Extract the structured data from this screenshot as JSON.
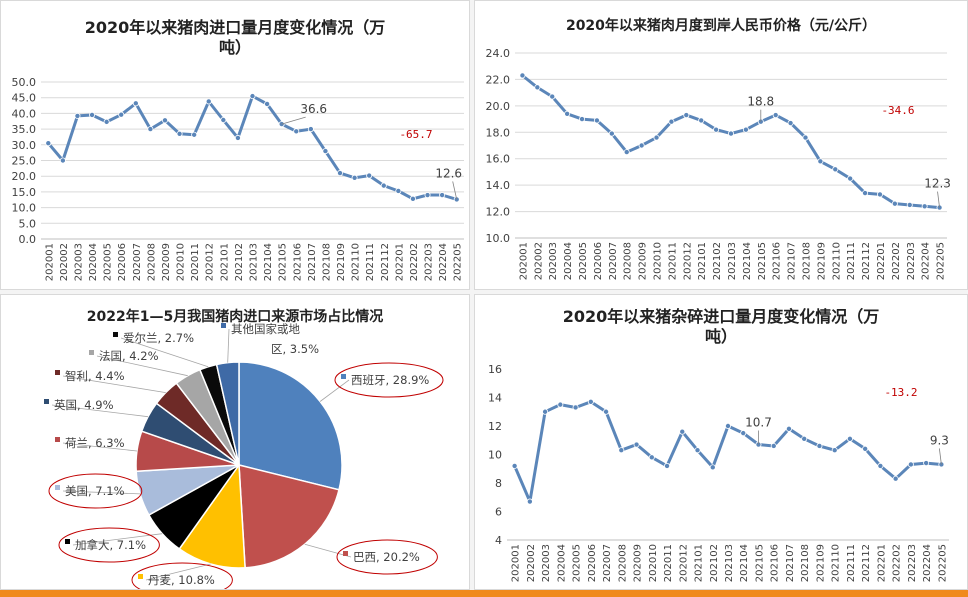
{
  "colors": {
    "line": "#5b86b9",
    "negative": "#c00000",
    "oval": "#c00000",
    "grid": "#d9d9d9",
    "text": "#404040",
    "strip": "#f08a1c"
  },
  "chart_data": [
    {
      "type": "line",
      "title": "2020年以来猪肉进口量月度变化情况（万吨）",
      "title_lines": [
        "2020年以来猪肉进口量月度变化情况（万",
        "吨）"
      ],
      "x": [
        "202001",
        "202002",
        "202003",
        "202004",
        "202005",
        "202006",
        "202007",
        "202008",
        "202009",
        "202010",
        "202011",
        "202012",
        "202101",
        "202102",
        "202103",
        "202104",
        "202105",
        "202106",
        "202107",
        "202108",
        "202109",
        "202110",
        "202111",
        "202112",
        "202201",
        "202202",
        "202203",
        "202204",
        "202205"
      ],
      "y": [
        30.5,
        25.0,
        39.2,
        39.5,
        37.3,
        39.6,
        43.2,
        35.0,
        37.8,
        33.5,
        33.2,
        43.8,
        37.9,
        32.2,
        45.5,
        43.0,
        36.6,
        34.3,
        35.0,
        28.0,
        21.0,
        19.5,
        20.2,
        17.0,
        15.3,
        12.8,
        14.0,
        14.0,
        12.6
      ],
      "yticks": [
        "0.0",
        "5.0",
        "10.0",
        "15.0",
        "20.0",
        "25.0",
        "30.0",
        "35.0",
        "40.0",
        "45.0",
        "50.0"
      ],
      "ylim": [
        0,
        50
      ],
      "annotations": [
        {
          "text": "36.6",
          "index": 16
        },
        {
          "text": "12.6",
          "index": 28
        }
      ],
      "change_label": "-65.7",
      "grid": true
    },
    {
      "type": "line",
      "title": "2020年以来猪肉月度到岸人民币价格（元/公斤）",
      "title_lines": [
        "2020年以来猪肉月度到岸人民币价格（元/公斤）"
      ],
      "x": [
        "202001",
        "202002",
        "202003",
        "202004",
        "202005",
        "202006",
        "202007",
        "202008",
        "202009",
        "202010",
        "202011",
        "202012",
        "202101",
        "202102",
        "202103",
        "202104",
        "202105",
        "202106",
        "202107",
        "202108",
        "202109",
        "202110",
        "202111",
        "202112",
        "202201",
        "202202",
        "202203",
        "202204",
        "202205"
      ],
      "y": [
        22.3,
        21.4,
        20.7,
        19.4,
        19.0,
        18.9,
        17.9,
        16.5,
        17.0,
        17.6,
        18.8,
        19.3,
        18.9,
        18.2,
        17.9,
        18.2,
        18.8,
        19.3,
        18.7,
        17.6,
        15.8,
        15.2,
        14.5,
        13.4,
        13.3,
        12.6,
        12.5,
        12.4,
        12.3
      ],
      "yticks": [
        "10.0",
        "12.0",
        "14.0",
        "16.0",
        "18.0",
        "20.0",
        "22.0",
        "24.0"
      ],
      "ylim": [
        10,
        24
      ],
      "annotations": [
        {
          "text": "18.8",
          "index": 16
        },
        {
          "text": "12.3",
          "index": 28
        }
      ],
      "change_label": "-34.6",
      "grid": true
    },
    {
      "type": "pie",
      "title": "2022年1—5月我国猪肉进口来源市场占比情况",
      "slices": [
        {
          "label": "西班牙, 28.9%",
          "value": 28.9,
          "color": "#4f81bd"
        },
        {
          "label": "巴西, 20.2%",
          "value": 20.2,
          "color": "#c0504d"
        },
        {
          "label": "丹麦, 10.8%",
          "value": 10.8,
          "color": "#ffc000"
        },
        {
          "label": "加拿大, 7.1%",
          "value": 7.1,
          "color": "#000000"
        },
        {
          "label": "美国, 7.1%",
          "value": 7.1,
          "color": "#a9bcdb"
        },
        {
          "label": "荷兰, 6.3%",
          "value": 6.3,
          "color": "#b74a4a"
        },
        {
          "label": "英国, 4.9%",
          "value": 4.9,
          "color": "#2f4d72"
        },
        {
          "label": "智利, 4.4%",
          "value": 4.4,
          "color": "#6e2a27"
        },
        {
          "label": "法国, 4.2%",
          "value": 4.2,
          "color": "#a6a6a6"
        },
        {
          "label": "爱尔兰, 2.7%",
          "value": 2.7,
          "color": "#0a0a0a"
        },
        {
          "label_lines": [
            "其他国家或地",
            "区, 3.5%"
          ],
          "label": "其他国家或地区, 3.5%",
          "value": 3.5,
          "color": "#3f6aa6"
        }
      ],
      "circled": [
        "西班牙, 28.9%",
        "巴西, 20.2%",
        "丹麦, 10.8%",
        "加拿大, 7.1%",
        "美国, 7.1%"
      ]
    },
    {
      "type": "line",
      "title": "2020年以来猪杂碎进口量月度变化情况（万吨）",
      "title_lines": [
        "2020年以来猪杂碎进口量月度变化情况（万",
        "吨）"
      ],
      "x": [
        "202001",
        "202002",
        "202003",
        "202004",
        "202005",
        "202006",
        "202007",
        "202008",
        "202009",
        "202010",
        "202011",
        "202012",
        "202101",
        "202102",
        "202103",
        "202104",
        "202105",
        "202106",
        "202107",
        "202108",
        "202109",
        "202110",
        "202111",
        "202112",
        "202201",
        "202202",
        "202203",
        "202204",
        "202205"
      ],
      "y": [
        9.2,
        6.7,
        13.0,
        13.5,
        13.3,
        13.7,
        13.0,
        10.3,
        10.7,
        9.8,
        9.2,
        11.6,
        10.3,
        9.1,
        12.0,
        11.5,
        10.7,
        10.6,
        11.8,
        11.1,
        10.6,
        10.3,
        11.1,
        10.4,
        9.2,
        8.3,
        9.3,
        9.4,
        9.3
      ],
      "yticks": [
        "4",
        "6",
        "8",
        "10",
        "12",
        "14",
        "16"
      ],
      "ylim": [
        4,
        16
      ],
      "annotations": [
        {
          "text": "10.7",
          "index": 16
        },
        {
          "text": "9.3",
          "index": 28
        }
      ],
      "change_label": "-13.2",
      "grid": false
    }
  ]
}
